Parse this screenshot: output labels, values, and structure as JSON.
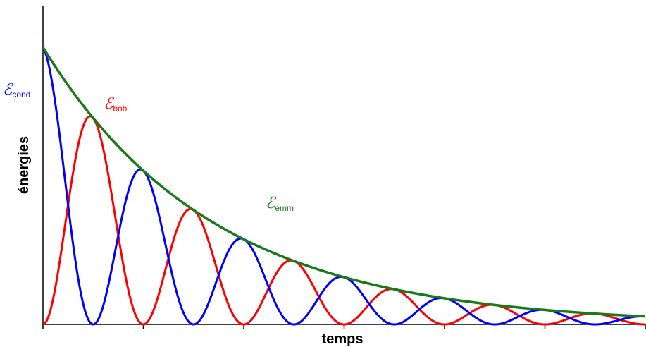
{
  "chart_data": {
    "type": "line",
    "title": "",
    "xlabel": "temps",
    "ylabel": "énergies",
    "grid": false,
    "x_ticks": 7,
    "xlim": [
      0,
      6
    ],
    "ylim": [
      0,
      1.15
    ],
    "model": {
      "oscillation_period": 1,
      "decay_rate": 0.59,
      "initial_energy": 1
    },
    "series": [
      {
        "name": "cond",
        "label_main": "ℰ",
        "label_sub": "cond",
        "color": "#0000ff",
        "description": "E_emm(t)·cos²(πt)"
      },
      {
        "name": "bob",
        "label_main": "ℰ",
        "label_sub": "bob",
        "color": "#ff0000",
        "description": "E_emm(t)·sin²(πt)"
      },
      {
        "name": "emm",
        "label_main": "ℰ",
        "label_sub": "emm",
        "color": "#1a7a1a",
        "description": "exp(-0.59·t)"
      }
    ]
  }
}
